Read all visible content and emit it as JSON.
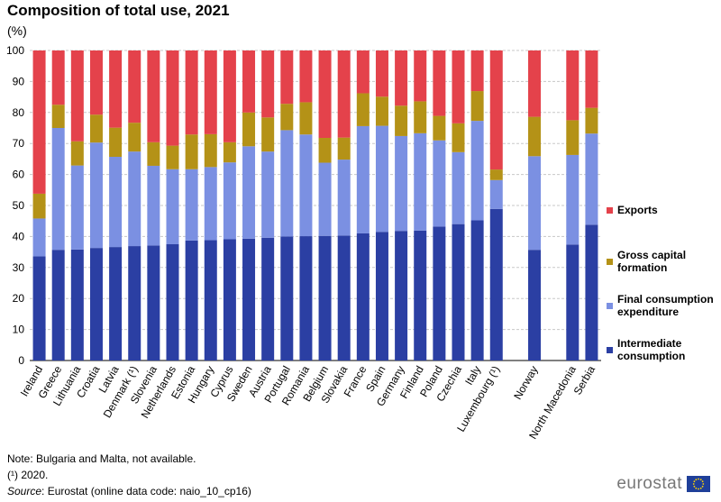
{
  "header": {
    "title": "Composition of total use, 2021",
    "unit": "(%)"
  },
  "legend": [
    {
      "label": "Exports",
      "color": "#e4424b"
    },
    {
      "label": "Gross capital\nformation",
      "color": "#b49217"
    },
    {
      "label": "Final consumption\nexpenditure",
      "color": "#7b90e2"
    },
    {
      "label": "Intermediate\nconsumption",
      "color": "#2b3fa3"
    }
  ],
  "notes": {
    "note": "Note: Bulgaria and Malta, not available.",
    "footnote": "(¹) 2020.",
    "source_label": "Source",
    "source_text": ": Eurostat (online data code: naio_10_cp16)"
  },
  "logo": {
    "text": "eurostat",
    "icon": "eu-flag-icon"
  },
  "chart_data": {
    "type": "bar",
    "stacked": true,
    "title": "Composition of total use, 2021",
    "ylabel": "(%)",
    "ylim": [
      0,
      100
    ],
    "yticks": [
      0,
      10,
      20,
      30,
      40,
      50,
      60,
      70,
      80,
      90,
      100
    ],
    "grid": true,
    "legend_position": "right",
    "categories": [
      "Ireland",
      "Greece",
      "Lithuania",
      "Croatia",
      "Latvia",
      "Denmark (¹)",
      "Slovenia",
      "Netherlands",
      "Estonia",
      "Hungary",
      "Cyprus",
      "Sweden",
      "Austria",
      "Portugal",
      "Romania",
      "Belgium",
      "Slovakia",
      "France",
      "Spain",
      "Germany",
      "Finland",
      "Poland",
      "Czechia",
      "Italy",
      "Luxembourg (¹)",
      "",
      "Norway",
      "",
      "North Macedonia",
      "Serbia"
    ],
    "series": [
      {
        "name": "Intermediate consumption",
        "color": "#2b3fa3",
        "values": [
          33.6,
          35.7,
          35.8,
          36.3,
          36.6,
          36.9,
          37.1,
          37.5,
          38.7,
          38.8,
          39.1,
          39.3,
          39.6,
          40.0,
          40.1,
          40.2,
          40.3,
          41.0,
          41.5,
          41.8,
          41.9,
          43.2,
          44.0,
          45.2,
          48.9,
          null,
          35.7,
          null,
          37.4,
          43.8
        ]
      },
      {
        "name": "Final consumption expenditure",
        "color": "#7b90e2",
        "values": [
          12.2,
          39.3,
          27.1,
          34.0,
          29.1,
          30.5,
          25.7,
          24.2,
          23.0,
          23.6,
          24.8,
          29.8,
          27.8,
          34.3,
          32.8,
          23.6,
          24.5,
          34.6,
          34.2,
          30.6,
          31.4,
          27.8,
          23.2,
          32.1,
          9.3,
          null,
          30.2,
          null,
          28.9,
          29.4
        ]
      },
      {
        "name": "Gross capital formation",
        "color": "#b49217",
        "values": [
          8.0,
          7.5,
          7.8,
          9.0,
          9.4,
          9.3,
          7.6,
          7.6,
          11.2,
          10.6,
          6.5,
          10.9,
          11.0,
          8.5,
          10.4,
          8.0,
          7.1,
          10.6,
          9.4,
          9.8,
          10.3,
          7.9,
          9.3,
          9.6,
          3.4,
          null,
          12.7,
          null,
          11.2,
          8.3
        ]
      },
      {
        "name": "Exports",
        "color": "#e4424b",
        "values": [
          46.2,
          17.5,
          29.3,
          20.7,
          24.9,
          23.3,
          29.6,
          30.7,
          27.1,
          27.0,
          29.6,
          20.0,
          21.6,
          17.2,
          16.7,
          28.2,
          28.1,
          13.8,
          14.9,
          17.8,
          16.4,
          21.1,
          23.5,
          13.1,
          38.4,
          null,
          21.4,
          null,
          22.5,
          18.5
        ]
      }
    ]
  }
}
